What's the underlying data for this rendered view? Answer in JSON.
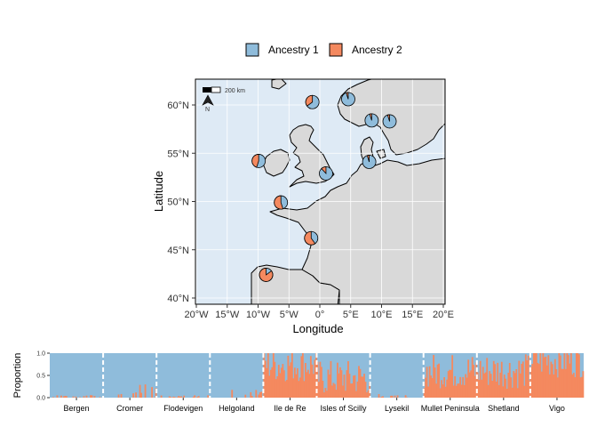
{
  "legend": [
    {
      "label": "Ancestry 1",
      "color": "#8fbcdb"
    },
    {
      "label": "Ancestry 2",
      "color": "#f4895f"
    }
  ],
  "map": {
    "xlabel": "Longitude",
    "ylabel": "Latitude",
    "xticks": [
      "20°W",
      "15°W",
      "10°W",
      "5°W",
      "0°",
      "5°E",
      "10°E",
      "15°E",
      "20°E"
    ],
    "yticks": [
      "40°N",
      "45°N",
      "50°N",
      "55°N",
      "60°N"
    ],
    "scalebar_label": "200 km",
    "north_label": "N",
    "ocean_color": "#deeaf5",
    "land_color": "#d9d9d9"
  },
  "chart_data": {
    "type": "pie",
    "pies": [
      {
        "lon": -1.2,
        "lat": 60.3,
        "ancestry2": 0.35
      },
      {
        "lon": 4.6,
        "lat": 60.6,
        "ancestry2": 0.05
      },
      {
        "lon": 8.4,
        "lat": 58.4,
        "ancestry2": 0.05
      },
      {
        "lon": 11.3,
        "lat": 58.3,
        "ancestry2": 0.05
      },
      {
        "lon": 8.0,
        "lat": 54.1,
        "ancestry2": 0.05
      },
      {
        "lon": 1.0,
        "lat": 52.9,
        "ancestry2": 0.12
      },
      {
        "lon": -9.9,
        "lat": 54.2,
        "ancestry2": 0.45
      },
      {
        "lon": -6.3,
        "lat": 49.9,
        "ancestry2": 0.55
      },
      {
        "lon": -1.4,
        "lat": 46.2,
        "ancestry2": 0.6
      },
      {
        "lon": -8.7,
        "lat": 42.4,
        "ancestry2": 0.85
      }
    ],
    "structure": {
      "ylabel": "Proportion",
      "yticks": [
        "0.0",
        "0.5",
        "1.0"
      ],
      "populations": [
        "Bergen",
        "Cromer",
        "Flodevigen",
        "Helgoland",
        "Ile de Re",
        "Isles of Scilly",
        "Lysekil",
        "Mullet Peninsula",
        "Shetland",
        "Vigo"
      ],
      "mean_ancestry2": [
        0.02,
        0.1,
        0.02,
        0.06,
        0.75,
        0.45,
        0.03,
        0.6,
        0.6,
        0.85
      ]
    }
  }
}
